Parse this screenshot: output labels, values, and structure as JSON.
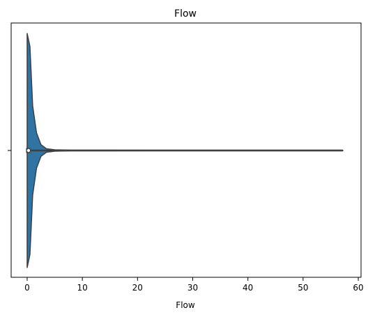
{
  "chart_data": {
    "type": "violin",
    "title": "Flow",
    "xlabel": "Flow",
    "ylabel": "",
    "xlim": [
      -2.9,
      60.5
    ],
    "x_ticks": [
      0,
      10,
      20,
      30,
      40,
      50,
      60
    ],
    "x_tick_labels": [
      "0",
      "10",
      "20",
      "30",
      "40",
      "50",
      "60"
    ],
    "grid": false,
    "colors": {
      "violin_fill": "#3274a1",
      "violin_edge": "#3f3f3f",
      "axis": "#000000"
    },
    "violin": {
      "min": 0.0,
      "max": 57.2,
      "q1": 0.0,
      "median": 0.25,
      "q3": 0.4,
      "density_profile": [
        [
          0.0,
          1.0
        ],
        [
          0.5,
          0.89
        ],
        [
          1.0,
          0.38
        ],
        [
          1.7,
          0.15
        ],
        [
          2.5,
          0.05
        ],
        [
          3.5,
          0.015
        ],
        [
          5.0,
          0.006
        ],
        [
          8.0,
          0.003
        ],
        [
          15.0,
          0.003
        ],
        [
          30.0,
          0.002
        ],
        [
          57.2,
          0.002
        ]
      ]
    }
  }
}
